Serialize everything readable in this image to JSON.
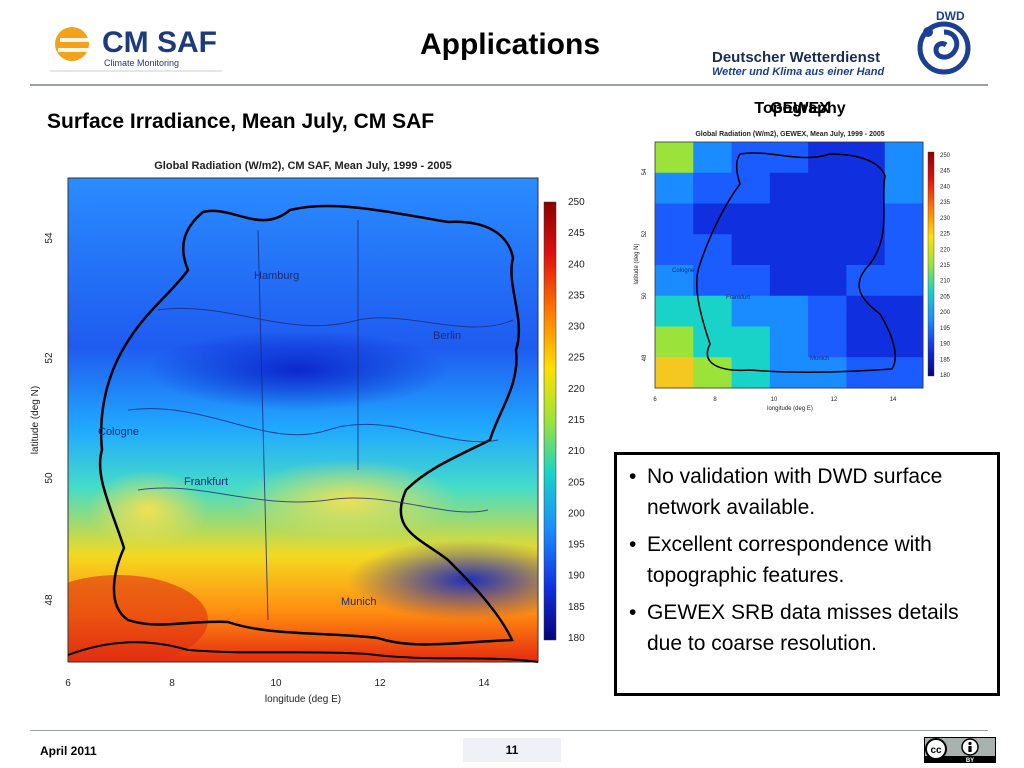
{
  "header": {
    "title": "Applications",
    "cmsaf_logo": {
      "name": "CM SAF",
      "tagline": "Climate Monitoring"
    },
    "dwd_logo": {
      "badge": "DWD",
      "name": "Deutscher Wetterdienst",
      "slogan": "Wetter und Klima aus einer Hand"
    }
  },
  "left_panel": {
    "heading": "Surface Irradiance, Mean July, CM SAF",
    "map": {
      "title": "Global Radiation (W/m2), CM SAF, Mean July, 1999 - 2005",
      "xlabel": "longitude (deg E)",
      "ylabel": "latitude (deg N)",
      "x_ticks": [
        "6",
        "8",
        "10",
        "12",
        "14"
      ],
      "y_ticks": [
        "54",
        "52",
        "50",
        "48"
      ],
      "cities": [
        "Hamburg",
        "Berlin",
        "Cologne",
        "Frankfurt",
        "Munich"
      ],
      "colorbar_ticks": [
        "250",
        "245",
        "240",
        "235",
        "230",
        "225",
        "220",
        "215",
        "210",
        "205",
        "200",
        "195",
        "190",
        "185",
        "180"
      ]
    }
  },
  "right_panel": {
    "heading_overlap": [
      "Topography",
      "GEWEX"
    ],
    "map": {
      "title": "Global Radiation (W/m2), GEWEX, Mean July, 1999 - 2005",
      "xlabel": "longitude (deg E)",
      "ylabel": "latitude (deg N)",
      "x_ticks": [
        "6",
        "8",
        "10",
        "12",
        "14"
      ],
      "y_ticks": [
        "54",
        "52",
        "50",
        "48"
      ],
      "cities": [
        "Cologne",
        "Frankfurt",
        "Munich"
      ],
      "colorbar_ticks": [
        "250",
        "245",
        "240",
        "235",
        "230",
        "225",
        "220",
        "215",
        "210",
        "205",
        "200",
        "195",
        "190",
        "185",
        "180"
      ]
    }
  },
  "bullets": [
    "No validation with DWD surface network available.",
    "Excellent correspondence with topographic features.",
    "GEWEX SRB data misses details due to coarse resolution."
  ],
  "bullet_symbol": "•",
  "footer": {
    "date": "April 2011",
    "page": "11",
    "license_badge": {
      "mark": "cc",
      "label": "BY"
    }
  },
  "colors": {
    "cmsaf_blue": "#1d3a7a",
    "cmsaf_orange": "#f3a31b",
    "dwd_blue": "#1b3f94",
    "rule_gray": "#9aa0a6"
  }
}
